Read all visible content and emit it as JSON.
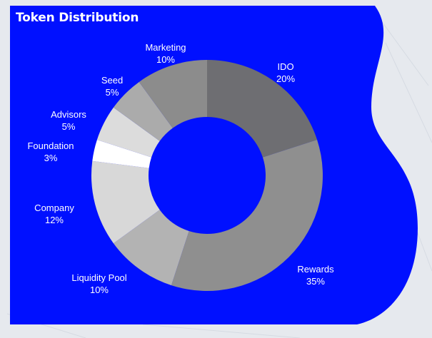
{
  "chart_data": {
    "type": "pie",
    "variant": "donut",
    "title": "Token Distribution",
    "categories": [
      "IDO",
      "Rewards",
      "Liquidity Pool",
      "Company",
      "Foundation",
      "Advisors",
      "Seed",
      "Marketing"
    ],
    "values": [
      20,
      35,
      10,
      12,
      3,
      5,
      5,
      10
    ],
    "value_labels": [
      "20%",
      "35%",
      "10%",
      "12%",
      "3%",
      "5%",
      "5%",
      "10%"
    ],
    "colors": [
      "#6e6e72",
      "#8f8f8f",
      "#b3b3b3",
      "#d8d8d8",
      "#ffffff",
      "#dcdcdc",
      "#ababab",
      "#8c8c8c"
    ],
    "legend": "none (labels placed outside slices)"
  },
  "panel": {
    "background": "#0010ff",
    "page_background": "#e6e9ee"
  }
}
